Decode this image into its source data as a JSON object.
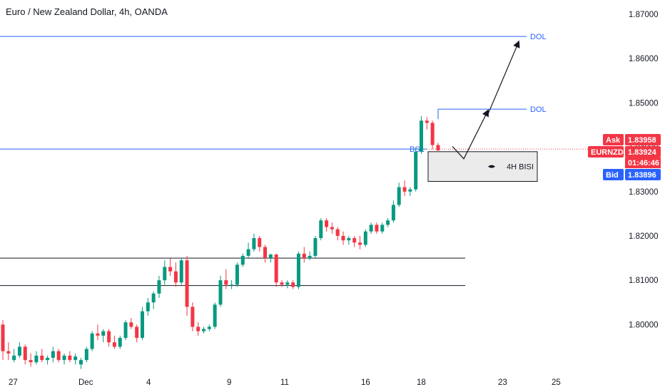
{
  "title": "Euro / New Zealand Dollar, 4h, OANDA",
  "chart_data": {
    "type": "candlestick",
    "symbol": "EURNZD",
    "timeframe": "4h",
    "broker": "OANDA",
    "ylim": [
      1.795,
      1.871
    ],
    "y_ticks": [
      "1.87000",
      "1.86000",
      "1.85000",
      "1.84000",
      "1.83000",
      "1.82000",
      "1.81000",
      "1.80000"
    ],
    "x_labels": [
      "27",
      "Dec",
      "4",
      "9",
      "11",
      "16",
      "18",
      "23",
      "25"
    ],
    "colors": {
      "up": "#089981",
      "down": "#f23645",
      "level": "#2962ff",
      "ask": "#f23645",
      "bid": "#2962ff"
    },
    "levels": [
      {
        "label": "DOL",
        "price": 1.865
      },
      {
        "label": "DOL",
        "price": 1.8486
      },
      {
        "label": "BSL",
        "price": 1.8396
      },
      {
        "label": "",
        "price": 1.815
      },
      {
        "label": "",
        "price": 1.8088
      }
    ],
    "zone": {
      "label": "4H BISI",
      "top": 1.839,
      "bottom": 1.8323
    },
    "ask": {
      "label": "Ask",
      "value": "1.83958"
    },
    "last": {
      "label": "EURNZD",
      "value": "1.83924",
      "countdown": "01:46:46"
    },
    "bid": {
      "label": "Bid",
      "value": "1.83896"
    },
    "candles": [
      [
        1.8,
        1.801,
        1.792,
        1.794
      ],
      [
        1.794,
        1.796,
        1.792,
        1.7935
      ],
      [
        1.792,
        1.7945,
        1.7915,
        1.793
      ],
      [
        1.793,
        1.796,
        1.7925,
        1.795
      ],
      [
        1.795,
        1.7955,
        1.791,
        1.792
      ],
      [
        1.792,
        1.7935,
        1.7905,
        1.7915
      ],
      [
        1.7915,
        1.794,
        1.791,
        1.793
      ],
      [
        1.793,
        1.7945,
        1.7915,
        1.792
      ],
      [
        1.792,
        1.793,
        1.791,
        1.7925
      ],
      [
        1.7925,
        1.795,
        1.7915,
        1.794
      ],
      [
        1.794,
        1.7945,
        1.7915,
        1.792
      ],
      [
        1.792,
        1.7935,
        1.791,
        1.793
      ],
      [
        1.793,
        1.794,
        1.7915,
        1.792
      ],
      [
        1.792,
        1.7935,
        1.791,
        1.7928
      ],
      [
        1.791,
        1.7925,
        1.79,
        1.792
      ],
      [
        1.792,
        1.795,
        1.7915,
        1.7945
      ],
      [
        1.7945,
        1.7985,
        1.794,
        1.798
      ],
      [
        1.798,
        1.8,
        1.7965,
        1.7975
      ],
      [
        1.7975,
        1.799,
        1.796,
        1.7985
      ],
      [
        1.7985,
        1.799,
        1.795,
        1.796
      ],
      [
        1.796,
        1.7975,
        1.7945,
        1.795
      ],
      [
        1.795,
        1.7975,
        1.7945,
        1.797
      ],
      [
        1.797,
        1.801,
        1.7965,
        1.8005
      ],
      [
        1.8005,
        1.8015,
        1.799,
        1.7995
      ],
      [
        1.7995,
        1.8,
        1.796,
        1.797
      ],
      [
        1.797,
        1.804,
        1.7965,
        1.803
      ],
      [
        1.803,
        1.806,
        1.802,
        1.805
      ],
      [
        1.805,
        1.8075,
        1.8035,
        1.807
      ],
      [
        1.807,
        1.811,
        1.806,
        1.81
      ],
      [
        1.81,
        1.8145,
        1.809,
        1.813
      ],
      [
        1.813,
        1.815,
        1.811,
        1.812
      ],
      [
        1.812,
        1.814,
        1.8085,
        1.8095
      ],
      [
        1.8095,
        1.815,
        1.809,
        1.8145
      ],
      [
        1.8145,
        1.8155,
        1.802,
        1.804
      ],
      [
        1.804,
        1.805,
        1.7985,
        1.7995
      ],
      [
        1.7995,
        1.8005,
        1.7975,
        1.7985
      ],
      [
        1.7985,
        1.7995,
        1.798,
        1.799
      ],
      [
        1.799,
        1.8,
        1.7985,
        1.7995
      ],
      [
        1.7995,
        1.805,
        1.799,
        1.8045
      ],
      [
        1.8045,
        1.811,
        1.804,
        1.81
      ],
      [
        1.81,
        1.8125,
        1.808,
        1.809
      ],
      [
        1.809,
        1.81,
        1.808,
        1.809
      ],
      [
        1.809,
        1.814,
        1.8085,
        1.8135
      ],
      [
        1.8135,
        1.816,
        1.813,
        1.8155
      ],
      [
        1.8155,
        1.8185,
        1.815,
        1.817
      ],
      [
        1.817,
        1.8205,
        1.8165,
        1.8195
      ],
      [
        1.8195,
        1.82,
        1.8165,
        1.8175
      ],
      [
        1.8175,
        1.818,
        1.814,
        1.815
      ],
      [
        1.815,
        1.816,
        1.814,
        1.8158
      ],
      [
        1.8158,
        1.816,
        1.8085,
        1.8095
      ],
      [
        1.8095,
        1.81,
        1.8085,
        1.809
      ],
      [
        1.809,
        1.81,
        1.8082,
        1.8095
      ],
      [
        1.8095,
        1.81,
        1.808,
        1.8085
      ],
      [
        1.8085,
        1.8165,
        1.808,
        1.816
      ],
      [
        1.816,
        1.8175,
        1.814,
        1.815
      ],
      [
        1.815,
        1.8165,
        1.8145,
        1.8155
      ],
      [
        1.8155,
        1.82,
        1.815,
        1.8195
      ],
      [
        1.8195,
        1.824,
        1.819,
        1.8235
      ],
      [
        1.8235,
        1.824,
        1.821,
        1.822
      ],
      [
        1.822,
        1.823,
        1.8205,
        1.8215
      ],
      [
        1.8215,
        1.822,
        1.819,
        1.82
      ],
      [
        1.82,
        1.821,
        1.818,
        1.819
      ],
      [
        1.819,
        1.82,
        1.818,
        1.8195
      ],
      [
        1.8195,
        1.82,
        1.8175,
        1.8185
      ],
      [
        1.8185,
        1.82,
        1.817,
        1.818
      ],
      [
        1.818,
        1.8215,
        1.8175,
        1.821
      ],
      [
        1.821,
        1.823,
        1.8205,
        1.8225
      ],
      [
        1.8225,
        1.823,
        1.8205,
        1.821
      ],
      [
        1.821,
        1.823,
        1.8205,
        1.8225
      ],
      [
        1.8225,
        1.824,
        1.822,
        1.8235
      ],
      [
        1.8235,
        1.828,
        1.823,
        1.827
      ],
      [
        1.827,
        1.832,
        1.8265,
        1.831
      ],
      [
        1.831,
        1.8325,
        1.829,
        1.83
      ],
      [
        1.83,
        1.831,
        1.829,
        1.8305
      ],
      [
        1.8305,
        1.84,
        1.83,
        1.839
      ],
      [
        1.839,
        1.847,
        1.8385,
        1.846
      ],
      [
        1.846,
        1.8468,
        1.844,
        1.8455
      ],
      [
        1.8455,
        1.846,
        1.8395,
        1.8405
      ],
      [
        1.8405,
        1.841,
        1.839,
        1.8393
      ]
    ]
  }
}
